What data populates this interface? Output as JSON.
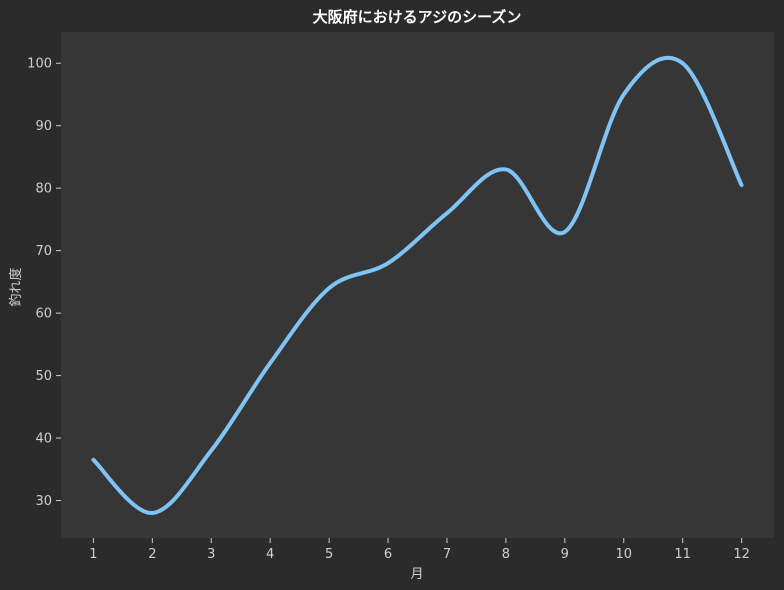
{
  "chart_data": {
    "type": "line",
    "title": "大阪府におけるアジのシーズン",
    "xlabel": "月",
    "ylabel": "釣れ度",
    "x": [
      1,
      2,
      3,
      4,
      5,
      6,
      7,
      8,
      9,
      10,
      11,
      12
    ],
    "series": [
      {
        "values": [
          36.5,
          28,
          38,
          52,
          64,
          68,
          76,
          83,
          73,
          95,
          100,
          80.5
        ]
      }
    ],
    "xlim": [
      0.45,
      12.55
    ],
    "ylim": [
      24,
      105
    ],
    "xticks": [
      1,
      2,
      3,
      4,
      5,
      6,
      7,
      8,
      9,
      10,
      11,
      12
    ],
    "yticks": [
      30,
      40,
      50,
      60,
      70,
      80,
      90,
      100
    ],
    "grid": false,
    "colors": {
      "line": "#7fc4f5",
      "plot_bg": "#363636",
      "fig_bg": "#2b2b2b"
    }
  }
}
